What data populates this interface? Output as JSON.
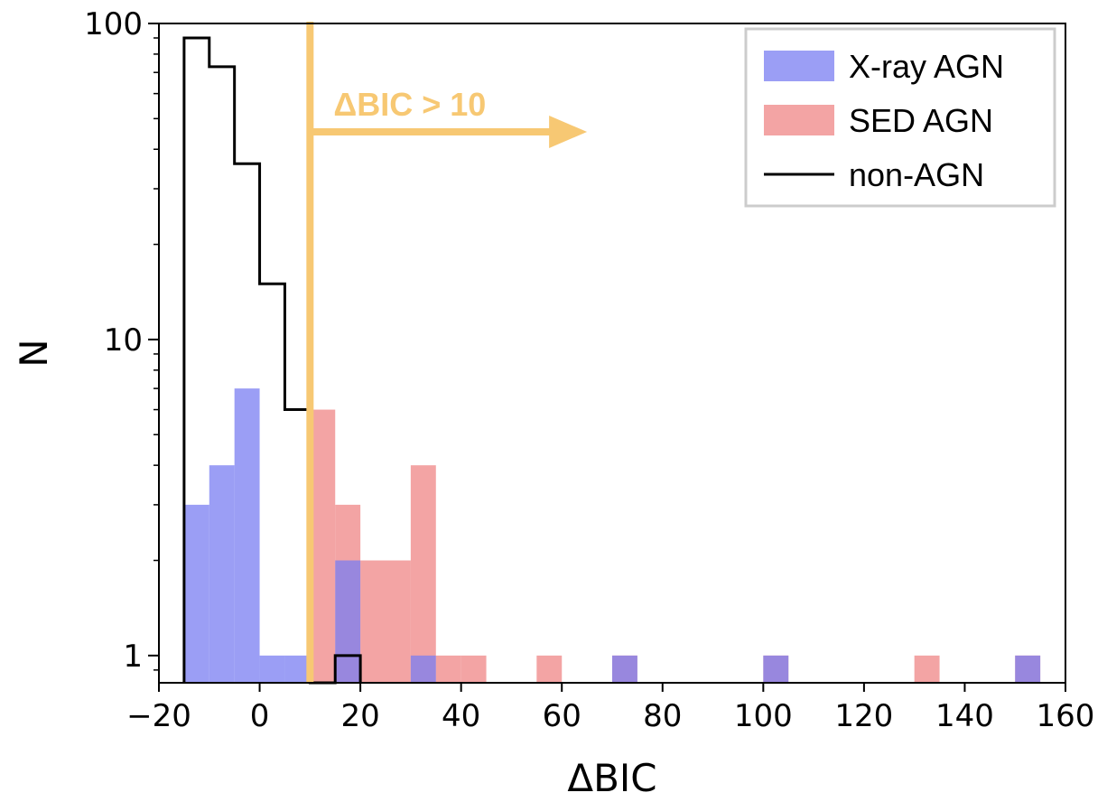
{
  "chart_data": {
    "type": "bar",
    "title": "",
    "xlabel": "ΔBIC",
    "ylabel": "N",
    "xlim": [
      -20,
      160
    ],
    "ylim": [
      0.82,
      100
    ],
    "yscale": "log",
    "xticks": [
      -20,
      0,
      20,
      40,
      60,
      80,
      100,
      120,
      140,
      160
    ],
    "xtick_labels": [
      "−20",
      "0",
      "20",
      "40",
      "60",
      "80",
      "100",
      "120",
      "140",
      "160"
    ],
    "yticks": [
      1,
      10,
      100
    ],
    "ytick_labels": [
      "1",
      "10",
      "100"
    ],
    "bin_width": 5,
    "series": [
      {
        "name": "X-ray AGN",
        "style": "filled",
        "color": "#7a7ef2",
        "bins": [
          {
            "left": -15,
            "count": 3
          },
          {
            "left": -10,
            "count": 4
          },
          {
            "left": -5,
            "count": 7
          },
          {
            "left": 0,
            "count": 1
          },
          {
            "left": 5,
            "count": 1
          },
          {
            "left": 15,
            "count": 2
          },
          {
            "left": 30,
            "count": 1
          },
          {
            "left": 70,
            "count": 1
          },
          {
            "left": 100,
            "count": 1
          },
          {
            "left": 150,
            "count": 1
          }
        ]
      },
      {
        "name": "SED AGN",
        "style": "filled",
        "color": "#ef8585",
        "bins": [
          {
            "left": 10,
            "count": 6
          },
          {
            "left": 15,
            "count": 3
          },
          {
            "left": 20,
            "count": 2
          },
          {
            "left": 25,
            "count": 2
          },
          {
            "left": 30,
            "count": 4
          },
          {
            "left": 35,
            "count": 1
          },
          {
            "left": 40,
            "count": 1
          },
          {
            "left": 55,
            "count": 1
          },
          {
            "left": 70,
            "count": 1
          },
          {
            "left": 100,
            "count": 1
          },
          {
            "left": 130,
            "count": 1
          },
          {
            "left": 150,
            "count": 1
          }
        ]
      },
      {
        "name": "non-AGN",
        "style": "step",
        "color": "#000000",
        "bins": [
          {
            "left": -15,
            "count": 90
          },
          {
            "left": -10,
            "count": 73
          },
          {
            "left": -5,
            "count": 36
          },
          {
            "left": 0,
            "count": 15
          },
          {
            "left": 5,
            "count": 6
          },
          {
            "left": 10,
            "count": 0
          },
          {
            "left": 15,
            "count": 1
          }
        ]
      }
    ],
    "annotation": {
      "text": "ΔBIC > 10",
      "threshold_x": 10,
      "arrow_end_x": 65,
      "color": "#f7c873"
    },
    "legend": {
      "position": "top-right",
      "entries": [
        "X-ray AGN",
        "SED AGN",
        "non-AGN"
      ]
    }
  }
}
